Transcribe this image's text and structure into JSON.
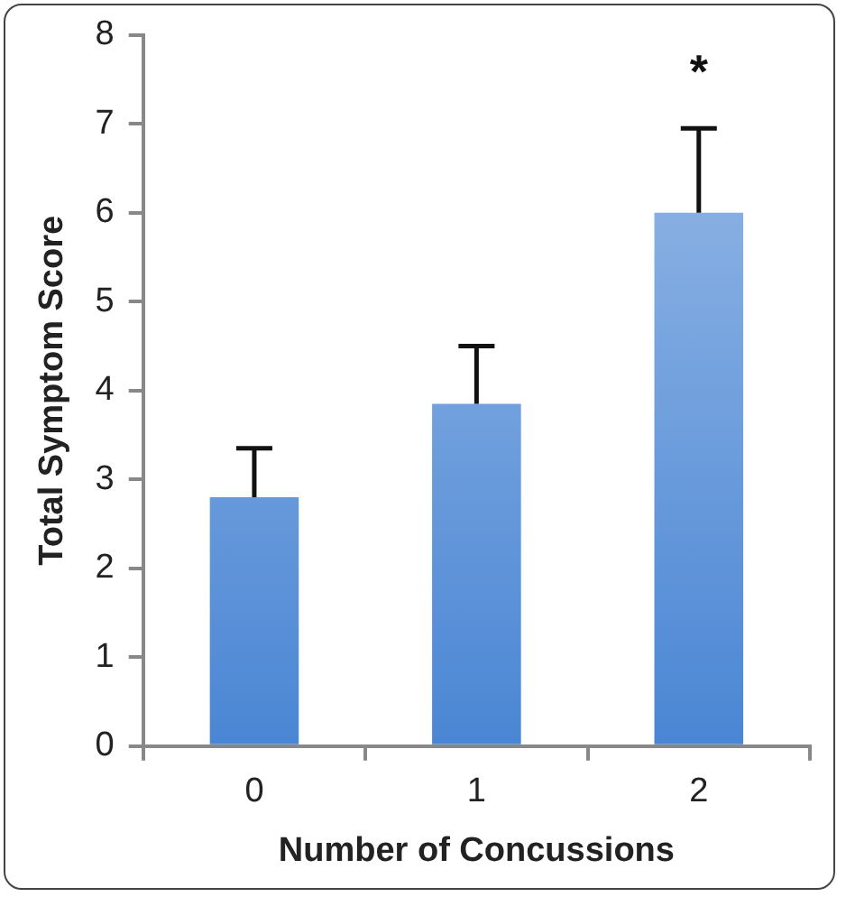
{
  "chart_data": {
    "type": "bar",
    "xlabel": "Number of Concussions",
    "ylabel": "Total Symptom Score",
    "categories": [
      "0",
      "1",
      "2"
    ],
    "values": [
      2.8,
      3.85,
      6.0
    ],
    "errors": [
      [
        2.8,
        3.35
      ],
      [
        3.85,
        4.5
      ],
      [
        6.0,
        6.95
      ]
    ],
    "color": "#4a86d4",
    "ylim": [
      0,
      8
    ],
    "yticks": [
      0,
      1,
      2,
      3,
      4,
      5,
      6,
      7,
      8
    ],
    "grid": false,
    "legend": false,
    "annotations": [
      "*"
    ]
  }
}
